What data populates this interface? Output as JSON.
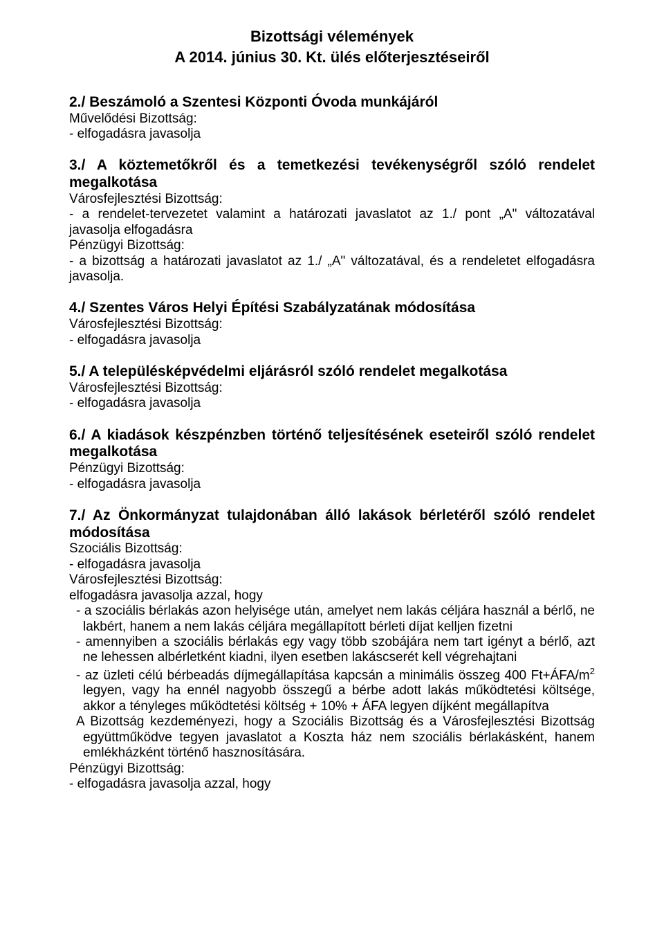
{
  "header": {
    "title": "Bizottsági vélemények",
    "subtitle": "A 2014. június 30. Kt. ülés előterjesztéseiről"
  },
  "sections": {
    "s2": {
      "heading": "2./ Beszámoló a Szentesi Központi Óvoda munkájáról",
      "committee1": "Művelődési Bizottság:",
      "line1": "- elfogadásra javasolja"
    },
    "s3": {
      "heading": "3./ A köztemetőkről és a temetkezési tevékenységről szóló rendelet megalkotása",
      "committee1": "Városfejlesztési Bizottság:",
      "line1": "- a rendelet-tervezetet valamint a határozati javaslatot az 1./ pont „A\" változatával javasolja elfogadásra",
      "committee2": "Pénzügyi Bizottság:",
      "line2": "- a bizottság a határozati javaslatot az 1./ „A\" változatával, és a rendeletet elfogadásra javasolja."
    },
    "s4": {
      "heading": "4./ Szentes Város Helyi Építési Szabályzatának módosítása",
      "committee1": "Városfejlesztési Bizottság:",
      "line1": "- elfogadásra javasolja"
    },
    "s5": {
      "heading": "5./ A településképvédelmi eljárásról szóló rendelet megalkotása",
      "committee1": "Városfejlesztési Bizottság:",
      "line1": "- elfogadásra javasolja"
    },
    "s6": {
      "heading": "6./ A kiadások készpénzben történő teljesítésének eseteiről szóló rendelet megalkotása",
      "committee1": "Pénzügyi Bizottság:",
      "line1": "- elfogadásra javasolja"
    },
    "s7": {
      "heading": "7./ Az Önkormányzat tulajdonában álló lakások bérletéről szóló rendelet módosítása",
      "committee1": "Szociális Bizottság:",
      "line1": "- elfogadásra javasolja",
      "committee2": "Városfejlesztési Bizottság:",
      "line2": "elfogadásra javasolja azzal, hogy",
      "bullet1": "- a szociális bérlakás azon helyisége után, amelyet nem lakás céljára használ a bérlő, ne lakbért, hanem a nem lakás céljára megállapított bérleti díjat kelljen fizetni",
      "bullet2": "- amennyiben a szociális bérlakás egy vagy több szobájára nem tart igényt a bérlő, azt ne lehessen albérletként kiadni, ilyen esetben lakáscserét kell végrehajtani",
      "bullet3_pre": "- az üzleti célú bérbeadás díjmegállapítása kapcsán a minimális összeg 400 Ft+ÁFA/m",
      "bullet3_sup": "2",
      "bullet3_post": " legyen, vagy ha ennél nagyobb összegű a bérbe adott lakás működtetési költsége, akkor a tényleges működtetési költség + 10% + ÁFA legyen díjként megállapítva",
      "bullet4": "A Bizottság kezdeményezi, hogy a Szociális Bizottság és a Városfejlesztési Bizottság együttműködve tegyen javaslatot a Koszta ház nem szociális bérlakásként, hanem emlékházként történő hasznosítására.",
      "committee3": "Pénzügyi Bizottság:",
      "line3": "- elfogadásra javasolja azzal, hogy"
    }
  }
}
